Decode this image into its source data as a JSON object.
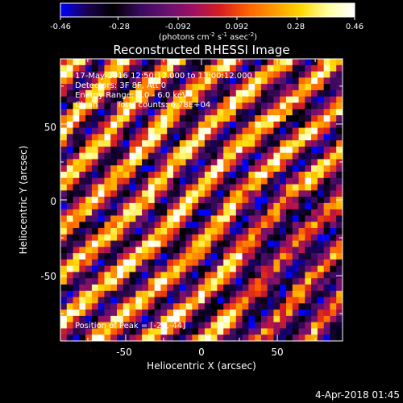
{
  "colorbar": {
    "tick_labels": [
      "-0.46",
      "-0.28",
      "-0.092",
      "0.092",
      "0.28",
      "0.46"
    ],
    "tick_values": [
      -0.46,
      -0.28,
      -0.092,
      0.092,
      0.28,
      0.46
    ],
    "range": [
      -0.46,
      0.46
    ],
    "colormap": [
      "#0000ff",
      "#1a0050",
      "#000000",
      "#3a0a60",
      "#6a1070",
      "#a01060",
      "#d81e20",
      "#ff6000",
      "#ff9a00",
      "#ffd800",
      "#ffffa0",
      "#ffffff"
    ],
    "units_parts": [
      "(photons cm",
      "-2",
      " s",
      "-1",
      " asec",
      "-2",
      ")"
    ]
  },
  "title": "Reconstructed RHESSI Image",
  "annotations": {
    "line1": "17-May-2016 12:50:12.000 to 13:00:12.000",
    "line2": "Detectors: 3F 8F, Att 0",
    "line3": "Energy Range: 3.0 - 6.0 keV",
    "line4_method": "Clean",
    "line4_counts": "Total counts: 6.78E+04",
    "peak": "Position of Peak = [-24,-44]"
  },
  "axes": {
    "xlabel": "Heliocentric X (arcsec)",
    "ylabel": "Heliocentric Y (arcsec)",
    "x_ticks": [
      "-50",
      "0",
      "50"
    ],
    "y_ticks": [
      "50",
      "0",
      "-50"
    ]
  },
  "timestamp": "4-Apr-2018 01:45",
  "chart_data": {
    "type": "heatmap",
    "title": "Reconstructed RHESSI Image",
    "xlabel": "Heliocentric X (arcsec)",
    "ylabel": "Heliocentric Y (arcsec)",
    "xlim": [
      -93,
      93
    ],
    "ylim": [
      -93,
      93
    ],
    "x_ticks": [
      -50,
      0,
      50
    ],
    "y_ticks": [
      -50,
      0,
      50
    ],
    "value_range": [
      -0.46,
      0.46
    ],
    "grid_size": [
      45,
      45
    ],
    "pattern": "diagonal stripes running from upper-left to lower-right",
    "peak_position": [
      -24,
      -44
    ],
    "colorbar_ticks": [
      -0.46,
      -0.28,
      -0.092,
      0.092,
      0.28,
      0.46
    ]
  }
}
